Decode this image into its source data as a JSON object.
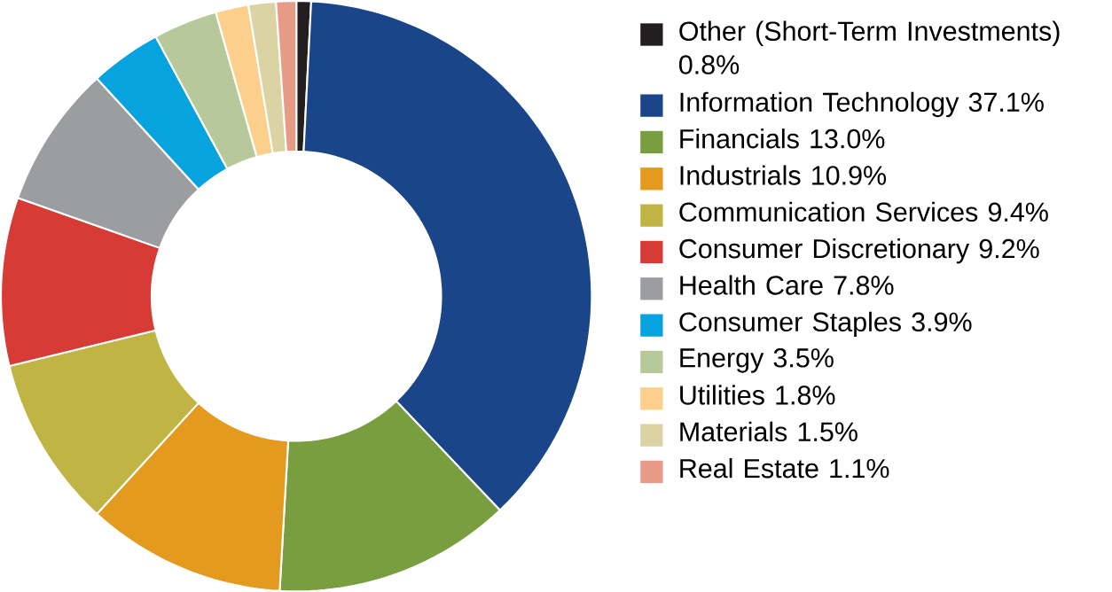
{
  "chart_data": {
    "type": "donut",
    "categories": [
      "Other (Short-Term Investments) 0.8%",
      "Information Technology 37.1%",
      "Financials 13.0%",
      "Industrials 10.9%",
      "Communication Services 9.4%",
      "Consumer Discretionary 9.2%",
      "Health Care 7.8%",
      "Consumer Staples 3.9%",
      "Energy 3.5%",
      "Utilities 1.8%",
      "Materials 1.5%",
      "Real Estate 1.1%"
    ],
    "values": [
      0.8,
      37.1,
      13.0,
      10.9,
      9.4,
      9.2,
      7.8,
      3.9,
      3.5,
      1.8,
      1.5,
      1.1
    ],
    "colors": [
      "#231f20",
      "#1b4589",
      "#789e40",
      "#e39a1e",
      "#c0b444",
      "#d63b36",
      "#9b9da0",
      "#06a3df",
      "#b7c89a",
      "#fcd08c",
      "#dcd3a4",
      "#e79a86"
    ],
    "legend": "right"
  }
}
